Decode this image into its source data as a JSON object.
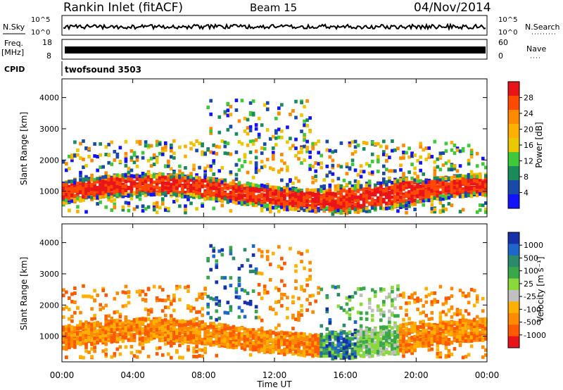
{
  "header": {
    "station": "Rankin Inlet (fitACF)",
    "beam": "Beam 15",
    "date": "04/Nov/2014"
  },
  "status_panels": {
    "nsky_label": "N.Sky",
    "nsearch_label": "N.Search",
    "noise_ticks": [
      "10^5",
      "10^0"
    ],
    "freq_label": "Freq.",
    "freq_unit": "[MHz]",
    "freq_ticks": [
      "18",
      "8"
    ],
    "nave_label": "Nave",
    "nave_ticks": [
      "60",
      "0"
    ],
    "cpid_label": "CPID",
    "cpid_value": "twofsound 3503"
  },
  "chart_data": [
    {
      "type": "heatmap",
      "title": "",
      "ylabel": "Slant Range [km]",
      "xlabel": "",
      "x_range_hours": [
        0,
        24
      ],
      "ylim": [
        180,
        4600
      ],
      "x_ticks": [
        "00:00",
        "04:00",
        "08:00",
        "12:00",
        "16:00",
        "20:00",
        "00:00"
      ],
      "y_ticks": [
        1000,
        2000,
        3000,
        4000
      ],
      "colorbar": {
        "label": "Power [dB]",
        "ticks": [
          "28",
          "24",
          "20",
          "16",
          "12",
          "8",
          "4"
        ],
        "colors": [
          "#e8141a",
          "#ff4a00",
          "#ff8a00",
          "#ffb000",
          "#e8c800",
          "#3ec83a",
          "#1a8a5a",
          "#1a4aa8",
          "#1212ff"
        ]
      }
    },
    {
      "type": "heatmap",
      "title": "",
      "ylabel": "Slant Range [km]",
      "xlabel": "Time UT",
      "x_range_hours": [
        0,
        24
      ],
      "ylim": [
        180,
        4600
      ],
      "x_ticks": [
        "00:00",
        "04:00",
        "08:00",
        "12:00",
        "16:00",
        "20:00",
        "00:00"
      ],
      "y_ticks": [
        1000,
        2000,
        3000,
        4000
      ],
      "colorbar": {
        "label": "Velocity [m s⁻¹]",
        "ticks": [
          "1000",
          "500",
          "100",
          "25",
          "-25",
          "-100",
          "-500",
          "-1000"
        ],
        "colors": [
          "#1530a8",
          "#1e66c8",
          "#2a8a6a",
          "#3aa84a",
          "#8ad83a",
          "#c0c0c0",
          "#ffb000",
          "#ff8a00",
          "#ff5a00",
          "#e8141a"
        ]
      }
    }
  ]
}
